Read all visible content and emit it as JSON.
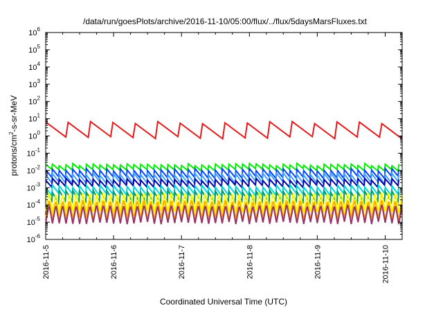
{
  "chart_data": {
    "type": "line",
    "title": "/data/run/goesPlots/archive/2016-11-10/05:00/flux/../flux/5daysMarsFluxes.txt",
    "xlabel": "Coordinated Universal Time (UTC)",
    "ylabel_parts": [
      "protons/cm",
      "2",
      "-s-sr-MeV"
    ],
    "y_scale": "log",
    "ylim": [
      1e-06,
      1000000.0
    ],
    "y_ticks": [
      {
        "base": "10",
        "exp": "-6",
        "value": 1e-06
      },
      {
        "base": "10",
        "exp": "-5",
        "value": 1e-05
      },
      {
        "base": "10",
        "exp": "-4",
        "value": 0.0001
      },
      {
        "base": "10",
        "exp": "-3",
        "value": 0.001
      },
      {
        "base": "10",
        "exp": "-2",
        "value": 0.01
      },
      {
        "base": "10",
        "exp": "-1",
        "value": 0.1
      },
      {
        "base": "10",
        "exp": "0",
        "value": 1
      },
      {
        "base": "10",
        "exp": "1",
        "value": 10
      },
      {
        "base": "10",
        "exp": "2",
        "value": 100
      },
      {
        "base": "10",
        "exp": "3",
        "value": 1000
      },
      {
        "base": "10",
        "exp": "4",
        "value": 10000
      },
      {
        "base": "10",
        "exp": "5",
        "value": 100000
      },
      {
        "base": "10",
        "exp": "6",
        "value": 1000000
      }
    ],
    "xlim": [
      "2016-11-05T00:00",
      "2016-11-10T06:00"
    ],
    "x_ticks": [
      {
        "label": "2016-11-5",
        "value": "2016-11-05T00:00"
      },
      {
        "label": "2016-11-6",
        "value": "2016-11-06T00:00"
      },
      {
        "label": "2016-11-7",
        "value": "2016-11-07T00:00"
      },
      {
        "label": "2016-11-8",
        "value": "2016-11-08T00:00"
      },
      {
        "label": "2016-11-9",
        "value": "2016-11-09T00:00"
      },
      {
        "label": "2016-11-10",
        "value": "2016-11-10T00:00"
      }
    ],
    "grid": false,
    "series": [
      {
        "color": "#e41a1c",
        "style": "sawtooth",
        "period_days": 0.33,
        "peak": 6,
        "trough": 0.8
      },
      {
        "color": "#00ee00",
        "style": "sawtooth",
        "period_days": 0.1,
        "peak": 0.022,
        "trough": 0.011
      },
      {
        "color": "#0044ff",
        "style": "sawtooth",
        "period_days": 0.1,
        "peak": 0.011,
        "trough": 0.004
      },
      {
        "color": "#40a0ff",
        "style": "sawtooth",
        "period_days": 0.1,
        "peak": 0.006,
        "trough": 0.002
      },
      {
        "color": "#0000aa",
        "style": "sawtooth",
        "period_days": 0.1,
        "peak": 0.003,
        "trough": 0.0012
      },
      {
        "color": "#00d8d8",
        "style": "sawtooth",
        "period_days": 0.1,
        "peak": 0.0012,
        "trough": 0.0004
      },
      {
        "color": "#009966",
        "style": "sawtooth",
        "period_days": 0.1,
        "peak": 0.0006,
        "trough": 0.00015
      },
      {
        "color": "#ffff00",
        "style": "spiky",
        "period_days": 0.1,
        "peak": 0.0004,
        "trough": 4e-05
      },
      {
        "color": "#ffaa00",
        "style": "spiky",
        "period_days": 0.1,
        "peak": 0.00015,
        "trough": 1.5e-05
      },
      {
        "color": "#993366",
        "style": "spiky",
        "period_days": 0.1,
        "peak": 8e-05,
        "trough": 9e-06
      }
    ]
  }
}
